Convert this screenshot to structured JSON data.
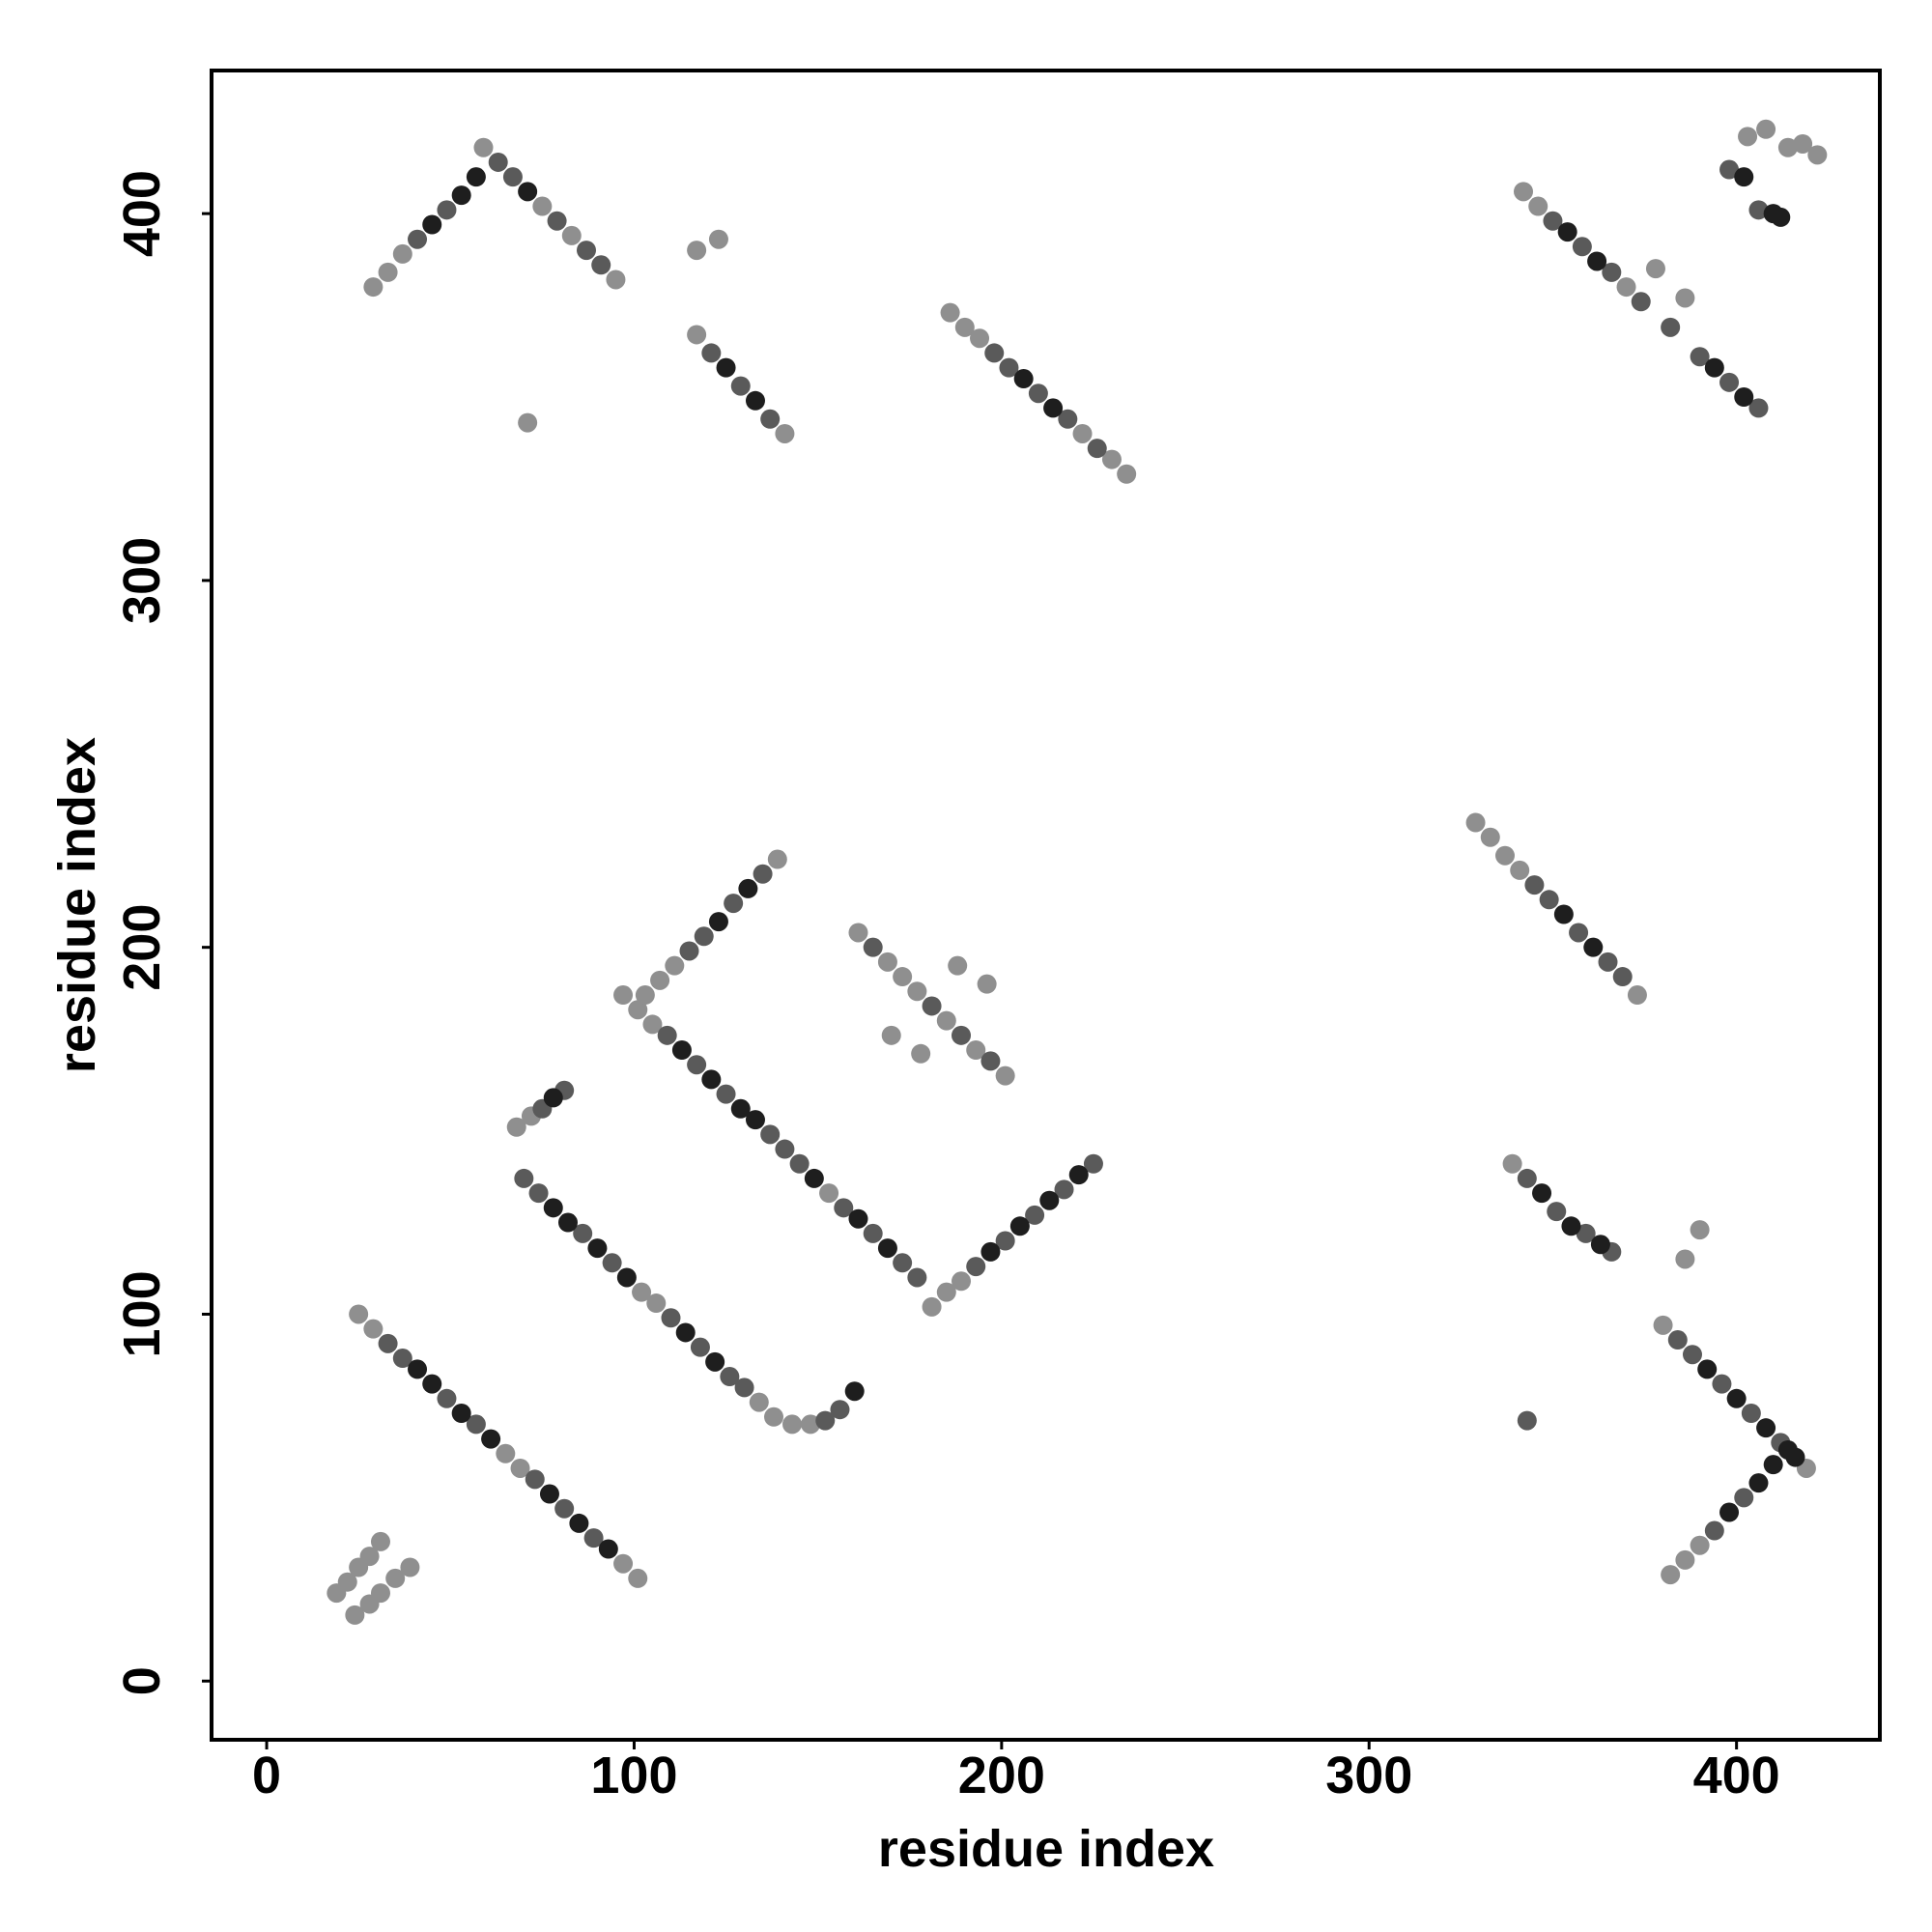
{
  "chart_data": {
    "type": "scatter",
    "xlabel": "residue index",
    "ylabel": "residue index",
    "xlim": [
      -15,
      439
    ],
    "ylim": [
      -16,
      439
    ],
    "xticks": [
      0,
      100,
      200,
      300,
      400
    ],
    "yticks": [
      0,
      100,
      200,
      300,
      400
    ],
    "series": [
      {
        "color": "#8f8f8f",
        "x": [
          19,
          22,
          25,
          28,
          31,
          24,
          28,
          31,
          35,
          39,
          25,
          29,
          65,
          69,
          97,
          101,
          102,
          106,
          134,
          138,
          143,
          148,
          68,
          72,
          97,
          101,
          105,
          181,
          185,
          189,
          153,
          103,
          107,
          111,
          139,
          161,
          169,
          173,
          177,
          185,
          193,
          201,
          170,
          178,
          188,
          196,
          329,
          333,
          337,
          341,
          373,
          339,
          386,
          390,
          380,
          382,
          386,
          390,
          419,
          29,
          33,
          37,
          71,
          75,
          83,
          95,
          59,
          117,
          123,
          141,
          117,
          186,
          190,
          194,
          230,
          234,
          222,
          342,
          346,
          378,
          386,
          370,
          403,
          408,
          414,
          418,
          422
        ],
        "y": [
          24,
          27,
          31,
          34,
          38,
          18,
          21,
          24,
          28,
          31,
          100,
          96,
          62,
          58,
          32,
          28,
          106,
          103,
          76,
          72,
          70,
          70,
          151,
          154,
          187,
          183,
          179,
          102,
          106,
          109,
          133,
          187,
          191,
          195,
          224,
          204,
          196,
          192,
          188,
          180,
          172,
          165,
          176,
          171,
          195,
          190,
          234,
          230,
          225,
          221,
          187,
          141,
          115,
          123,
          97,
          29,
          33,
          37,
          58,
          380,
          384,
          389,
          343,
          402,
          394,
          382,
          418,
          390,
          393,
          340,
          367,
          373,
          369,
          366,
          333,
          329,
          340,
          406,
          402,
          385,
          377,
          380,
          421,
          423,
          418,
          419,
          416
        ]
      },
      {
        "color": "#5a5a5a",
        "x": [
          33,
          37,
          49,
          57,
          73,
          81,
          89,
          70,
          74,
          86,
          94,
          110,
          118,
          126,
          130,
          152,
          156,
          75,
          81,
          109,
          117,
          125,
          137,
          141,
          145,
          157,
          165,
          173,
          177,
          193,
          201,
          209,
          217,
          225,
          115,
          119,
          127,
          135,
          165,
          181,
          189,
          197,
          345,
          349,
          357,
          365,
          369,
          343,
          351,
          359,
          366,
          343,
          384,
          388,
          396,
          404,
          412,
          394,
          402,
          41,
          49,
          63,
          67,
          79,
          87,
          91,
          121,
          129,
          137,
          198,
          202,
          210,
          218,
          226,
          350,
          358,
          366,
          374,
          382,
          390,
          398,
          406,
          398,
          406
        ],
        "y": [
          92,
          88,
          77,
          70,
          55,
          47,
          39,
          137,
          133,
          122,
          114,
          99,
          91,
          83,
          80,
          71,
          74,
          156,
          161,
          176,
          168,
          160,
          149,
          145,
          141,
          129,
          122,
          114,
          110,
          113,
          120,
          127,
          134,
          141,
          199,
          203,
          212,
          220,
          200,
          184,
          176,
          169,
          217,
          213,
          204,
          196,
          192,
          137,
          128,
          122,
          117,
          71,
          93,
          89,
          81,
          73,
          65,
          41,
          50,
          393,
          401,
          414,
          410,
          398,
          390,
          386,
          362,
          353,
          344,
          362,
          358,
          351,
          344,
          336,
          398,
          391,
          384,
          376,
          369,
          361,
          354,
          347,
          412,
          401
        ]
      },
      {
        "color": "#1e1e1e",
        "x": [
          41,
          45,
          53,
          61,
          77,
          85,
          93,
          78,
          82,
          90,
          98,
          114,
          122,
          160,
          78,
          113,
          121,
          129,
          133,
          149,
          161,
          169,
          197,
          205,
          213,
          221,
          123,
          131,
          353,
          361,
          347,
          355,
          363,
          392,
          400,
          408,
          416,
          398,
          406,
          410,
          414,
          45,
          53,
          57,
          71,
          125,
          133,
          206,
          214,
          354,
          362,
          394,
          402,
          402,
          410,
          412
        ],
        "y": [
          85,
          81,
          73,
          66,
          51,
          43,
          36,
          129,
          125,
          118,
          110,
          95,
          87,
          79,
          159,
          172,
          164,
          156,
          153,
          137,
          126,
          118,
          117,
          124,
          131,
          138,
          207,
          216,
          209,
          200,
          133,
          124,
          119,
          85,
          77,
          69,
          61,
          46,
          54,
          59,
          63,
          397,
          405,
          410,
          406,
          358,
          349,
          355,
          347,
          395,
          387,
          358,
          350,
          410,
          400,
          399
        ]
      }
    ]
  }
}
